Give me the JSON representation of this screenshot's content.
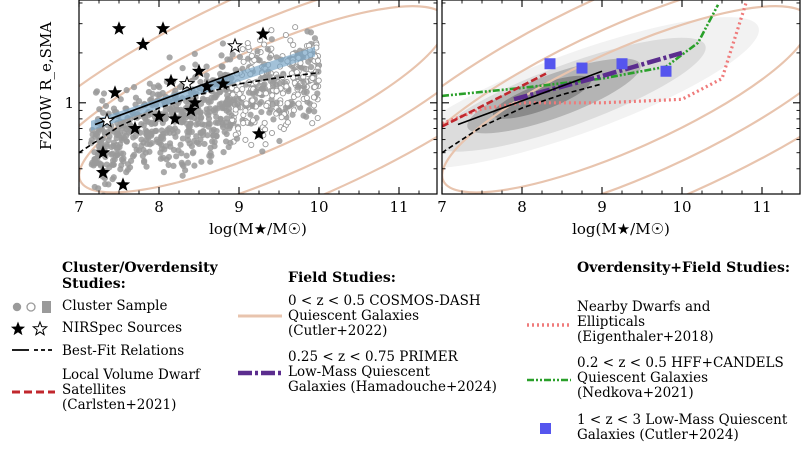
{
  "chart_data": [
    {
      "type": "scatter",
      "panel": "left",
      "ylabel": "F200W R_e,SMA",
      "xlabel": "log(M★/M☉)",
      "xlim": [
        7,
        11.5
      ],
      "ylim_log10": [
        -0.55,
        0.62
      ],
      "x_ticks": [
        7,
        8,
        9,
        10,
        11
      ],
      "y_ticks": [
        {
          "value": 1,
          "label": "1"
        }
      ],
      "series": [
        {
          "name": "NIRSpec Sources (filled)",
          "x": [
            7.5,
            7.8,
            8.05,
            8.8,
            9.3,
            7.45,
            7.3,
            7.7,
            8.0,
            8.2,
            8.4,
            8.6,
            9.25,
            7.3,
            7.55,
            8.5,
            8.15,
            8.45
          ],
          "y": [
            2.8,
            2.25,
            2.8,
            1.3,
            2.6,
            1.15,
            0.5,
            0.7,
            0.83,
            0.8,
            0.9,
            1.25,
            0.65,
            0.38,
            0.32,
            1.55,
            1.35,
            1.0
          ]
        },
        {
          "name": "NIRSpec Sources (open)",
          "x": [
            8.95,
            8.35,
            7.35
          ],
          "y": [
            2.2,
            1.3,
            0.78
          ]
        },
        {
          "name": "Best-Fit solid",
          "x": [
            7.2,
            9.0
          ],
          "y": [
            0.74,
            1.55
          ]
        },
        {
          "name": "Best-Fit dashed",
          "x": [
            7.0,
            7.5,
            8.0,
            8.5,
            9.0,
            9.5,
            10.0
          ],
          "y": [
            0.5,
            0.72,
            0.93,
            1.12,
            1.3,
            1.42,
            1.52
          ]
        },
        {
          "name": "Cutler+2022 contours",
          "x": [],
          "y": []
        }
      ]
    },
    {
      "type": "line",
      "panel": "right",
      "xlabel": "log(M★/M☉)",
      "xlim": [
        7,
        11.5
      ],
      "ylim_log10": [
        -0.55,
        0.62
      ],
      "x_ticks": [
        7,
        8,
        9,
        10,
        11
      ],
      "series": [
        {
          "name": "Cutler+2024",
          "x": [
            8.35,
            8.75,
            9.25,
            9.8
          ],
          "y": [
            1.72,
            1.62,
            1.72,
            1.55
          ]
        },
        {
          "name": "Hamadouche+2024",
          "x": [
            7.9,
            9.0,
            10.0
          ],
          "y": [
            1.05,
            1.45,
            2.0
          ]
        },
        {
          "name": "Nedkova+2021",
          "x": [
            7.0,
            8.0,
            9.0,
            9.8,
            10.2,
            10.45
          ],
          "y": [
            1.1,
            1.23,
            1.4,
            1.65,
            2.3,
            3.9
          ]
        },
        {
          "name": "Eigenthaler+2018",
          "x": [
            7.0,
            7.5,
            8.0,
            9.0,
            10.0,
            10.5,
            10.8
          ],
          "y": [
            0.75,
            0.92,
            1.0,
            1.0,
            1.05,
            1.4,
            4.0
          ]
        },
        {
          "name": "Carlsten+2021",
          "x": [
            7.0,
            8.3
          ],
          "y": [
            0.72,
            1.5
          ]
        },
        {
          "name": "Best-Fit solid",
          "x": [
            7.2,
            9.0
          ],
          "y": [
            0.74,
            1.55
          ]
        },
        {
          "name": "Best-Fit dashed",
          "x": [
            7.0,
            7.5,
            8.0,
            8.5,
            9.0
          ],
          "y": [
            0.5,
            0.72,
            0.93,
            1.12,
            1.3
          ]
        }
      ]
    }
  ],
  "colors": {
    "cluster_gray": "#9a9a9a",
    "contour_tan": "#e8c4ae",
    "cosmos_density": [
      "#f2f2f2",
      "#dcdcdc",
      "#b4b4b4",
      "#8a8a8a"
    ],
    "primer_purple": "#5b2d8e",
    "hff_green": "#2aa02a",
    "dwarf_red": "#c1272d",
    "eigen_pink": "#ef7b7b",
    "cutler_blue": "#5555ee",
    "fit_band": "#7aa6c8"
  },
  "legend": {
    "cluster_title": "Cluster/Overdensity\nStudies:",
    "cluster_sample": "Cluster Sample",
    "nirspec": "NIRSpec Sources",
    "best_fit": "Best-Fit Relations",
    "carlsten": "Local Volume Dwarf\nSatellites\n(Carlsten+2021)",
    "field_title": "Field Studies:",
    "cosmos": "0 < z < 0.5 COSMOS-DASH\nQuiescent Galaxies\n(Cutler+2022)",
    "primer": "0.25 < z < 0.75 PRIMER\nLow-Mass Quiescent\nGalaxies (Hamadouche+2024)",
    "od_title": "Overdensity+Field\nStudies:",
    "eigen": "Nearby Dwarfs and\nEllipticals\n(Eigenthaler+2018)",
    "hff": "0.2 < z < 0.5 HFF+CANDELS\nQuiescent Galaxies\n(Nedkova+2021)",
    "cutler24": "1 < z < 3 Low-Mass Quiescent\nGalaxies (Cutler+2024)"
  }
}
